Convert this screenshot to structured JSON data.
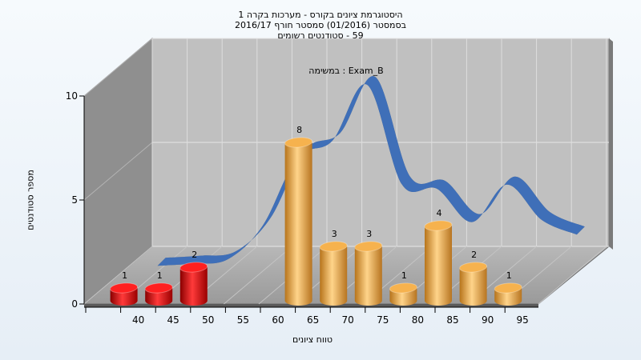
{
  "chart_data": {
    "type": "bar",
    "title_lines": [
      "היסטוגרמת ציונים בקורס - מערכות בקרה 1",
      "בסמסטר (01/2016) סמסטר חורף 2016/17",
      "59 - סטודנטים רשומים"
    ],
    "inner_title": "במשימה : Exam_B",
    "xlabel": "טווח ציונים",
    "ylabel": "מספר סטודנטים",
    "ylim": [
      0,
      10
    ],
    "y_ticks": [
      "0",
      "5",
      "10"
    ],
    "categories": [
      "40",
      "45",
      "50",
      "55",
      "60",
      "65",
      "70",
      "75",
      "80",
      "85",
      "90",
      "95"
    ],
    "bars": [
      {
        "x": 40,
        "value": 1,
        "label": "1",
        "color": "red"
      },
      {
        "x": 45,
        "value": 1,
        "label": "1",
        "color": "red"
      },
      {
        "x": 50,
        "value": 2,
        "label": "2",
        "color": "red"
      },
      {
        "x": 65,
        "value": 8,
        "label": "8",
        "color": "orange"
      },
      {
        "x": 70,
        "value": 3,
        "label": "3",
        "color": "orange"
      },
      {
        "x": 75,
        "value": 3,
        "label": "3",
        "color": "orange"
      },
      {
        "x": 80,
        "value": 1,
        "label": "1",
        "color": "orange"
      },
      {
        "x": 85,
        "value": 4,
        "label": "4",
        "color": "orange"
      },
      {
        "x": 90,
        "value": 2,
        "label": "2",
        "color": "orange"
      },
      {
        "x": 95,
        "value": 1,
        "label": "1",
        "color": "orange"
      }
    ],
    "curve": {
      "x": [
        40,
        45,
        50,
        55,
        60,
        65,
        70,
        75,
        80,
        85,
        90,
        95,
        100
      ],
      "y": [
        0.3,
        0.4,
        0.6,
        2.2,
        5.5,
        6.3,
        9.0,
        4.2,
        4.0,
        2.4,
        4.2,
        2.5,
        1.8
      ]
    },
    "grid": true,
    "colors": {
      "red": "#e81010",
      "orange": "#eaa23a",
      "curve_front": "#3a6fc0",
      "curve_back": "#6e6e6e"
    }
  }
}
